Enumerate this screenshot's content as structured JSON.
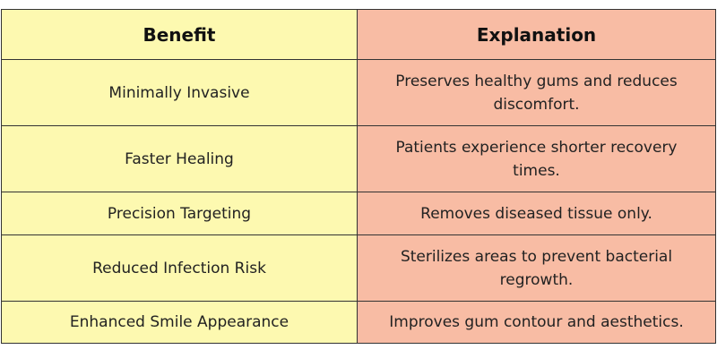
{
  "table": {
    "headers": {
      "benefit": "Benefit",
      "explanation": "Explanation"
    },
    "rows": [
      {
        "benefit": "Minimally Invasive",
        "explanation": "Preserves healthy gums and reduces discomfort."
      },
      {
        "benefit": "Faster Healing",
        "explanation": "Patients experience shorter recovery times."
      },
      {
        "benefit": "Precision Targeting",
        "explanation": "Removes diseased tissue only."
      },
      {
        "benefit": "Reduced Infection Risk",
        "explanation": "Sterilizes areas to prevent bacterial regrowth."
      },
      {
        "benefit": "Enhanced Smile Appearance",
        "explanation": "Improves gum contour and aesthetics."
      }
    ]
  },
  "colors": {
    "benefit_column": "#fdf9b0",
    "explanation_column": "#f8bca4",
    "border": "#333333"
  }
}
